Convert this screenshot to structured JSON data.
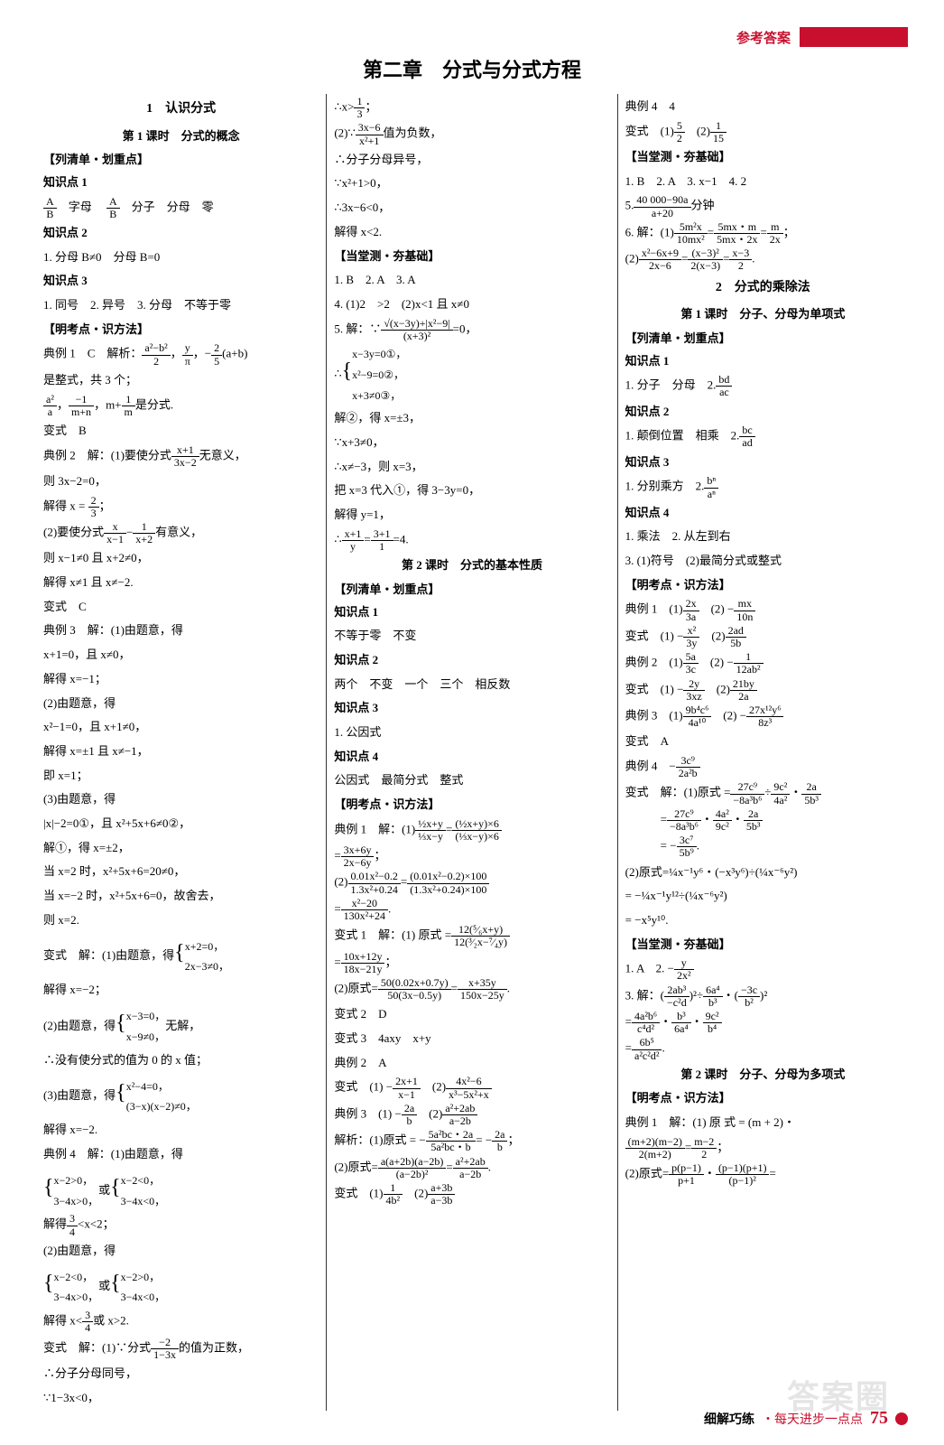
{
  "header": {
    "label": "参考答案"
  },
  "chapter": "第二章　分式与分式方程",
  "col1": {
    "t1": "1　认识分式",
    "t2": "第 1 课时　分式的概念",
    "g1": "【列清单・划重点】",
    "k1": "知识点 1",
    "l1a": "A",
    "l1b": "B",
    "l1c": "字母",
    "l1d": "A",
    "l1e": "B",
    "l1f": "分子　分母　零",
    "k2": "知识点 2",
    "l2": "1. 分母 B≠0　分母 B=0",
    "k3": "知识点 3",
    "l3": "1. 同号　2. 异号　3. 分母　不等于零",
    "g2": "【明考点・识方法】",
    "e1a": "典例 1　C　解析：",
    "e1b": "a²−b²",
    "e1c": "2",
    "e1d": "y",
    "e1e": "π",
    "e1f": "2",
    "e1g": "5",
    "e1h": "(a+b)",
    "e1i": "是整式，共 3 个；",
    "e1j": "a²",
    "e1k": "a",
    "e1l": "−1",
    "e1m": "m+n",
    "e1n": "1",
    "e1o": "m",
    "e1p": "是分式.",
    "v1": "变式　B",
    "e2a": "典例 2　解：(1)要使分式",
    "e2b": "x+1",
    "e2c": "3x−2",
    "e2d": "无意义，",
    "e2e": "则 3x−2=0，",
    "e2f": "解得 x = ",
    "e2g": "2",
    "e2h": "3",
    "e2i": "；",
    "e2j": "(2)要使分式",
    "e2k": "x",
    "e2l": "x−1",
    "e2m": "1",
    "e2n": "x+2",
    "e2o": "有意义，",
    "e2p": "则 x−1≠0 且 x+2≠0，",
    "e2q": "解得 x≠1 且 x≠−2.",
    "v2": "变式　C",
    "e3a": "典例 3　解：(1)由题意，得",
    "e3b": "x+1=0，且 x≠0，",
    "e3c": "解得 x=−1；",
    "e3d": "(2)由题意，得",
    "e3e": "x²−1=0，且 x+1≠0，",
    "e3f": "解得 x=±1 且 x≠−1，",
    "e3g": "即 x=1；",
    "e3h": "(3)由题意，得",
    "e3i": "|x|−2=0①，且 x²+5x+6≠0②，",
    "e3j": "解①，得 x=±2，",
    "e3k": "当 x=2 时，x²+5x+6=20≠0，",
    "e3l": "当 x=−2 时，x²+5x+6=0，故舍去，",
    "e3m": "则 x=2.",
    "v3a": "变式　解：(1)由题意，得",
    "v3b": "x+2=0，",
    "v3c": "2x−3≠0，",
    "v3d": "解得 x=−2；",
    "v3e": "(2)由题意，得",
    "v3f": "x−3=0，",
    "v3g": "x−9≠0，",
    "v3h": "无解，",
    "v3i": "∴没有使分式的值为 0 的 x 值；",
    "v3j": "(3)由题意，得",
    "v3k": "x²−4=0，",
    "v3l": "(3−x)(x−2)≠0，",
    "v3m": "解得 x=−2.",
    "e4a": "典例 4　解：(1)由题意，得",
    "e4b": "x−2>0，",
    "e4c": "3−4x>0，",
    "e4d": "或",
    "e4e": "x−2<0，",
    "e4f": "3−4x<0，",
    "e4g": "解得",
    "e4h": "3",
    "e4i": "4",
    "e4j": "<x<2；",
    "e4k": "(2)由题意，得",
    "e4l": "x−2<0，",
    "e4m": "3−4x>0，",
    "e4n": "或",
    "e4o": "x−2>0，",
    "e4p": "3−4x<0，",
    "e4q": "解得 x<",
    "e4r": "3",
    "e4s": "4",
    "e4t": "或 x>2.",
    "v4a": "变式　解：(1)∵分式",
    "v4b": "−2",
    "v4c": "1−3x",
    "v4d": "的值为正数，",
    "v4e": "∴分子分母同号，",
    "v4f": "∵1−3x<0，"
  },
  "col2": {
    "l1a": "∴x>",
    "l1b": "1",
    "l1c": "3",
    "l1d": "；",
    "l2a": "(2)∵",
    "l2b": "3x−6",
    "l2c": "x²+1",
    "l2d": "值为负数，",
    "l3": "∴分子分母异号，",
    "l4": "∵x²+1>0，",
    "l5": "∴3x−6<0，",
    "l6": "解得 x<2.",
    "g1": "【当堂测・夯基础】",
    "a1": "1. B　2. A　3. A",
    "a2": "4. (1)2　>2　(2)x<1 且 x≠0",
    "a3a": "5. 解：∵",
    "a3b": "√(x−3y)+|x²−9|",
    "a3c": "(x+3)²",
    "a3d": "=0，",
    "a4a": "∴",
    "a4b": "x−3y=0①，",
    "a4c": "x²−9=0②，",
    "a4d": "x+3≠0③，",
    "a5": "解②，得 x=±3，",
    "a6": "∵x+3≠0，",
    "a7": "∴x≠−3，则 x=3，",
    "a8": "把 x=3 代入①，得 3−3y=0，",
    "a9": "解得 y=1，",
    "a10a": "∴",
    "a10b": "x+1",
    "a10c": "y",
    "a10d": "3+1",
    "a10e": "1",
    "a10f": "=4.",
    "t2": "第 2 课时　分式的基本性质",
    "g2": "【列清单・划重点】",
    "k1": "知识点 1",
    "k1l": "不等于零　不变",
    "k2": "知识点 2",
    "k2l": "两个　不变　一个　三个　相反数",
    "k3": "知识点 3",
    "k3l": "1. 公因式",
    "k4": "知识点 4",
    "k4l": "公因式　最简分式　整式",
    "g3": "【明考点・识方法】",
    "e1a": "典例 1　解：(1)",
    "e1b": "½x+y",
    "e1c": "⅓x−y",
    "e1d": "(½x+y)×6",
    "e1e": "(⅓x−y)×6",
    "e1f": "3x+6y",
    "e1g": "2x−6y",
    "e2a": "(2)",
    "e2b": "0.01x²−0.2",
    "e2c": "1.3x²+0.24",
    "e2d": "(0.01x²−0.2)×100",
    "e2e": "(1.3x²+0.24)×100",
    "e2f": "x²−20",
    "e2g": "130x²+24",
    "v1a": "变式 1　解：(1) 原式 =",
    "v1b": "12(⁵⁄₆x+y)",
    "v1c": "12(³⁄₂x−⁷⁄₄y)",
    "v1d": "10x+12y",
    "v1e": "18x−21y",
    "v1f": "(2)原式=",
    "v1g": "50(0.02x+0.7y)",
    "v1h": "50(3x−0.5y)",
    "v1i": "x+35y",
    "v1j": "150x−25y",
    "v2": "变式 2　D",
    "v3": "变式 3　4axy　x+y",
    "e2x": "典例 2　A",
    "vxa": "变式　(1) −",
    "vxb": "2x+1",
    "vxc": "x−1",
    "vxd": "(2)",
    "vxe": "4x²−6",
    "vxf": "x³−5x²+x",
    "e3a": "典例 3　(1) −",
    "e3b": "2a",
    "e3c": "b",
    "e3d": "(2)",
    "e3e": "a²+2ab",
    "e3f": "a−2b",
    "jxa": "解析：(1)原式 = −",
    "jxb": "5a²bc・2a",
    "jxc": "5a²bc・b",
    "jxd": "= −",
    "jxe": "2a",
    "jxf": "b",
    "jx2a": "(2)原式=",
    "jx2b": "a(a+2b)(a−2b)",
    "jx2c": "(a−2b)²",
    "jx2d": "a²+2ab",
    "jx2e": "a−2b",
    "vya": "变式　(1)",
    "vyb": "1",
    "vyc": "4b²",
    "vyd": "(2)",
    "vye": "a+3b",
    "vyf": "a−3b"
  },
  "col3": {
    "e4": "典例 4　4",
    "v4a": "变式　(1)",
    "v4b": "5",
    "v4c": "2",
    "v4d": "(2)",
    "v4e": "1",
    "v4f": "15",
    "g1": "【当堂测・夯基础】",
    "a1": "1. B　2. A　3. x−1　4. 2",
    "a2a": "5.",
    "a2b": "40 000−90a",
    "a2c": "a+20",
    "a2d": "分钟",
    "a3a": "6. 解：(1)",
    "a3b": "5m²x",
    "a3c": "10mx²",
    "a3d": "5mx・m",
    "a3e": "5mx・2x",
    "a3f": "m",
    "a3g": "2x",
    "a4a": "(2)",
    "a4b": "x²−6x+9",
    "a4c": "2x−6",
    "a4d": "(x−3)²",
    "a4e": "2(x−3)",
    "a4f": "x−3",
    "a4g": "2",
    "t1": "2　分式的乘除法",
    "t2": "第 1 课时　分子、分母为单项式",
    "g2": "【列清单・划重点】",
    "k1": "知识点 1",
    "k1l": "1. 分子　分母　2.",
    "k1a": "bd",
    "k1b": "ac",
    "k2": "知识点 2",
    "k2l": "1. 颠倒位置　相乘　2.",
    "k2a": "bc",
    "k2b": "ad",
    "k3": "知识点 3",
    "k3l": "1. 分别乘方　2.",
    "k3a": "bⁿ",
    "k3b": "aⁿ",
    "k4": "知识点 4",
    "k4l1": "1. 乘法　2. 从左到右",
    "k4l2": "3. (1)符号　(2)最简分式或整式",
    "g3": "【明考点・识方法】",
    "e1a": "典例 1　(1)",
    "e1b": "2x",
    "e1c": "3a",
    "e1d": "(2) −",
    "e1e": "mx",
    "e1f": "10n",
    "v1a": "变式　(1) −",
    "v1b": "x²",
    "v1c": "3y",
    "v1d": "(2)",
    "v1e": "2ad",
    "v1f": "5b",
    "e2a": "典例 2　(1)",
    "e2b": "5a",
    "e2c": "3c",
    "e2d": "(2) −",
    "e2e": "1",
    "e2f": "12ab²",
    "v2a": "变式　(1) −",
    "v2b": "2y",
    "v2c": "3xz",
    "v2d": "(2)",
    "v2e": "21by",
    "v2f": "2a",
    "e3a": "典例 3　(1)",
    "e3b": "9b⁴c⁶",
    "e3c": "4a¹⁰",
    "e3d": "(2) −",
    "e3e": "27x¹²y⁶",
    "e3f": "8z³",
    "v3": "变式　A",
    "e4a": "典例 4　−",
    "e4b": "3c⁹",
    "e4c": "2a²b",
    "vxa": "变式　解：(1)原式 =",
    "vxb": "27c⁹",
    "vxc": "−8a³b⁶",
    "vxd": "9c²",
    "vxe": "4a²",
    "vxf": "2a",
    "vxg": "5b³",
    "vxh": "27c⁹",
    "vxi": "−8a³b⁶",
    "vxj": "4a²",
    "vxk": "9c²",
    "vxl": "2a",
    "vxm": "5b³",
    "vxn": "= −",
    "vxo": "3c⁷",
    "vxp": "5b⁹",
    "vy1": "(2)原式=¼x⁻¹y⁶・(−x³y⁶)÷(¼x⁻⁶y²)",
    "vy2": "= −¼x⁻¹y¹²÷(¼x⁻⁶y²)",
    "vy3": "= −x⁵y¹⁰.",
    "g4": "【当堂测・夯基础】",
    "b1a": "1. A　2. −",
    "b1b": "y",
    "b1c": "2x²",
    "b3a": "3. 解：",
    "b3b": "2ab³",
    "b3c": "−c²d",
    "b3d": "6a⁴",
    "b3e": "b³",
    "b3f": "−3c",
    "b3g": "b²",
    "b3h": "4a²b⁶",
    "b3i": "c⁴d²",
    "b3j": "b³",
    "b3k": "6a⁴",
    "b3l": "9c²",
    "b3m": "b⁴",
    "b3n": "6b⁵",
    "b3o": "a²c²d²",
    "t3": "第 2 课时　分子、分母为多项式",
    "g5": "【明考点・识方法】",
    "e5a": "典例 1　解：(1) 原 式 = (m + 2)・",
    "e5b": "(m+2)(m−2)",
    "e5c": "2(m+2)",
    "e5d": "m−2",
    "e5e": "2",
    "e6a": "(2)原式=",
    "e6b": "p(p−1)",
    "e6c": "p+1",
    "e6d": "(p−1)(p+1)",
    "e6e": "(p−1)²"
  },
  "footer": {
    "l1": "细解巧练",
    "l2": "・每天进步一点点",
    "pg": "75"
  },
  "watermark": "答案圈"
}
